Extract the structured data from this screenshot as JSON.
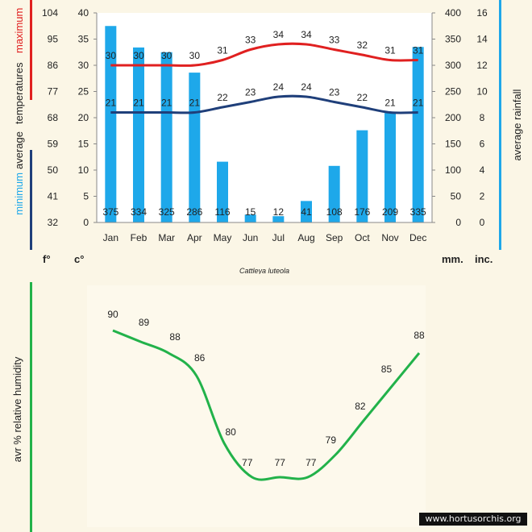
{
  "chart_data": [
    {
      "type": "bar",
      "subtitle": "Cattleya luteola",
      "categories": [
        "Jan",
        "Feb",
        "Mar",
        "Apr",
        "May",
        "Jun",
        "Jul",
        "Aug",
        "Sep",
        "Oct",
        "Nov",
        "Dec"
      ],
      "series": [
        {
          "name": "rainfall (mm)",
          "axis": "right",
          "values": [
            375,
            334,
            325,
            286,
            116,
            15,
            12,
            41,
            108,
            176,
            209,
            335
          ],
          "color": "#1ea8ea"
        },
        {
          "name": "maximum",
          "axis": "left",
          "type": "line",
          "values": [
            30,
            30,
            30,
            30,
            31,
            33,
            34,
            34,
            33,
            32,
            31,
            31
          ],
          "color": "#e02020"
        },
        {
          "name": "minimum",
          "axis": "left",
          "type": "line",
          "values": [
            21,
            21,
            21,
            21,
            22,
            23,
            24,
            24,
            23,
            22,
            21,
            21
          ],
          "color": "#1f3f7a"
        }
      ],
      "left_axis": {
        "celsius_ticks": [
          0,
          5,
          10,
          15,
          20,
          25,
          30,
          35,
          40
        ],
        "fahrenheit_ticks": [
          32,
          41,
          50,
          59,
          68,
          77,
          86,
          95,
          104
        ],
        "unit_f": "f°",
        "unit_c": "c°",
        "label_average": "average",
        "label_temperatures": "temperatures",
        "label_minimum": "minimum",
        "label_maximum": "maximum",
        "ylim": [
          0,
          40
        ]
      },
      "right_axis": {
        "mm_ticks": [
          0,
          50,
          100,
          150,
          200,
          250,
          300,
          350,
          400
        ],
        "inch_ticks": [
          0,
          2,
          4,
          6,
          8,
          10,
          12,
          14,
          16
        ],
        "unit_mm": "mm.",
        "unit_inch": "inc.",
        "label": "average rainfall",
        "ylim": [
          0,
          400
        ]
      }
    },
    {
      "type": "line",
      "categories": [
        "Jan",
        "Feb",
        "Mar",
        "Apr",
        "May",
        "Jun",
        "Jul",
        "Aug",
        "Sep",
        "Oct",
        "Nov",
        "Dec"
      ],
      "values": [
        90,
        89,
        88,
        86,
        80,
        77,
        77,
        77,
        79,
        82,
        85,
        88
      ],
      "ylabel": "avr % relative humidity",
      "color": "#22b24a",
      "ylim": [
        72,
        95
      ]
    }
  ],
  "watermark": "www.hortusorchis.org"
}
